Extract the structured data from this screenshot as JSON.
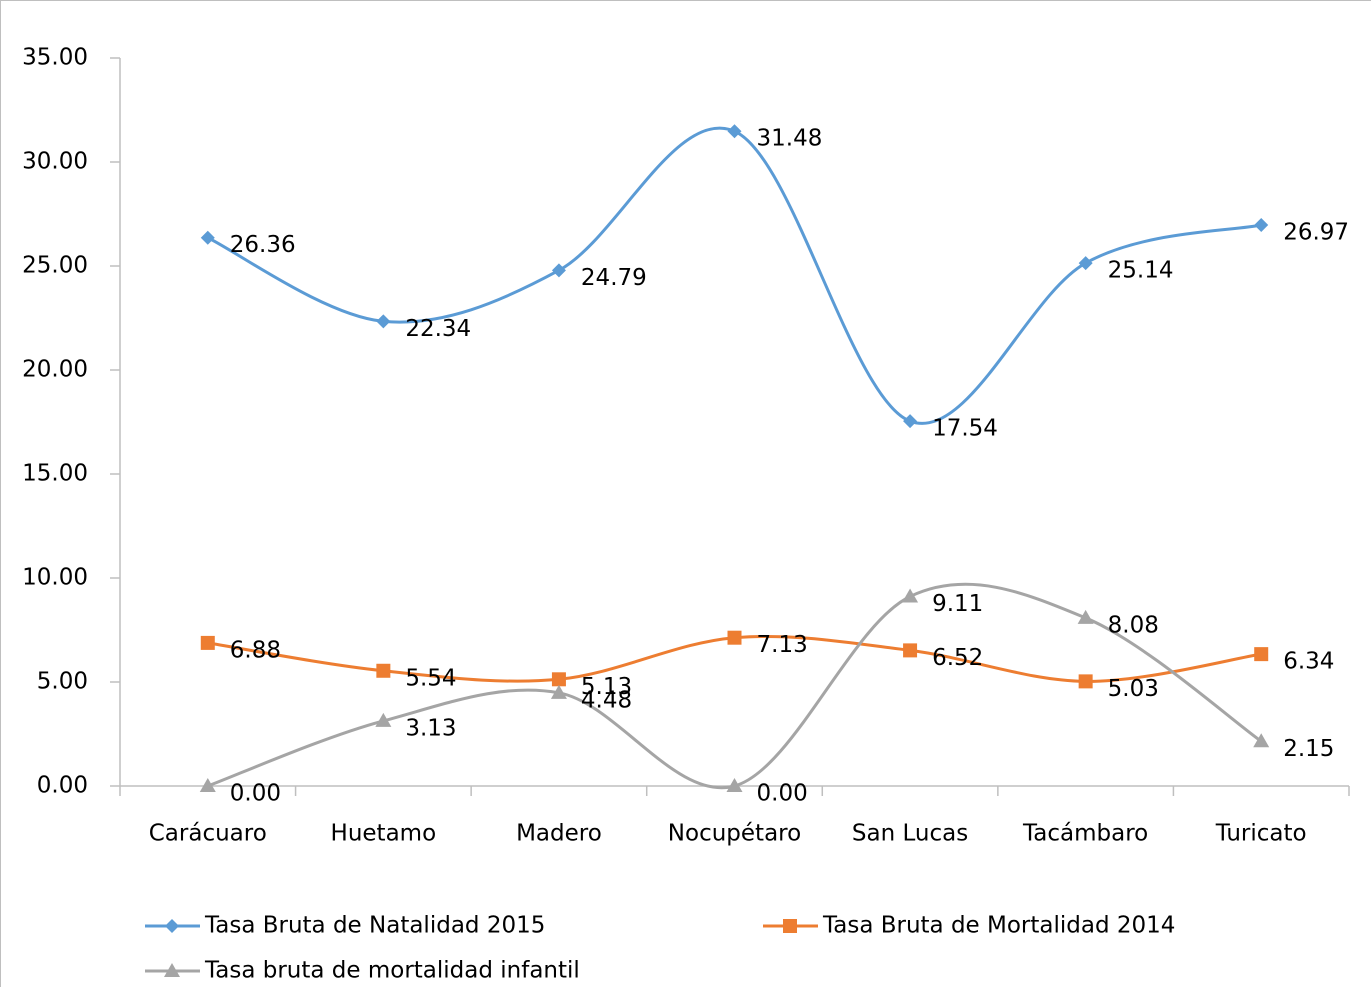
{
  "chart_data": {
    "type": "line",
    "categories": [
      "Carácuaro",
      "Huetamo",
      "Madero",
      "Nocupétaro",
      "San Lucas",
      "Tacámbaro",
      "Turicato"
    ],
    "series": [
      {
        "name": "Tasa Bruta de Natalidad 2015",
        "color": "#5b9bd5",
        "marker": "diamond",
        "values": [
          26.36,
          22.34,
          24.79,
          31.48,
          17.54,
          25.14,
          26.97
        ]
      },
      {
        "name": "Tasa Bruta de Mortalidad 2014",
        "color": "#ed7d31",
        "marker": "square",
        "values": [
          6.88,
          5.54,
          5.13,
          7.13,
          6.52,
          5.03,
          6.34
        ]
      },
      {
        "name": "Tasa bruta de mortalidad infantil",
        "color": "#a5a5a5",
        "marker": "triangle",
        "values": [
          0,
          3.13,
          4.48,
          0,
          9.11,
          8.08,
          2.15
        ],
        "value_labels": [
          "0.00",
          "3.13",
          "4.48",
          "0.00",
          "9.11",
          "8.08",
          "2.15"
        ]
      }
    ],
    "ylim": [
      0,
      35
    ],
    "yticks": [
      {
        "value": 0,
        "label": "0.00"
      },
      {
        "value": 5,
        "label": "5.00"
      },
      {
        "value": 10,
        "label": "10.00"
      },
      {
        "value": 15,
        "label": "15.00"
      },
      {
        "value": 20,
        "label": "20.00"
      },
      {
        "value": 25,
        "label": "25.00"
      },
      {
        "value": 30,
        "label": "30.00"
      },
      {
        "value": 35,
        "label": "35.00"
      }
    ],
    "smooth": true,
    "grid": false,
    "legend": "bottom"
  }
}
